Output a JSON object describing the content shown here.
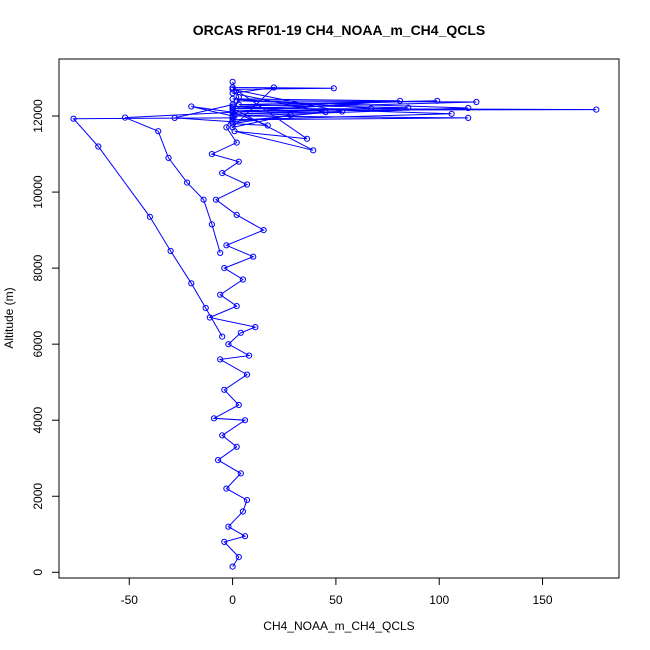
{
  "chart_data": {
    "type": "scatter",
    "title": "ORCAS RF01-19 CH4_NOAA_m_CH4_QCLS",
    "xlabel": "CH4_NOAA_m_CH4_QCLS",
    "ylabel": "Altitude (m)",
    "xlim": [
      -84,
      187
    ],
    "ylim": [
      -150,
      13500
    ],
    "x_ticks": [
      -50,
      0,
      50,
      100,
      150
    ],
    "y_ticks": [
      0,
      2000,
      4000,
      6000,
      8000,
      10000,
      12000
    ],
    "grid": false,
    "legend": "none",
    "series_color": "#0000ff",
    "series": [
      {
        "points": [
          {
            "x": 0,
            "y": 150
          },
          {
            "x": 3,
            "y": 400
          },
          {
            "x": -4,
            "y": 800
          },
          {
            "x": 6,
            "y": 950
          },
          {
            "x": -2,
            "y": 1200
          },
          {
            "x": 5,
            "y": 1600
          },
          {
            "x": 7,
            "y": 1900
          },
          {
            "x": -3,
            "y": 2200
          },
          {
            "x": 4,
            "y": 2600
          },
          {
            "x": -7,
            "y": 2950
          },
          {
            "x": 2,
            "y": 3300
          },
          {
            "x": -5,
            "y": 3600
          },
          {
            "x": 6,
            "y": 4000
          },
          {
            "x": -9,
            "y": 4050
          },
          {
            "x": 3,
            "y": 4400
          },
          {
            "x": -4,
            "y": 4800
          },
          {
            "x": 7,
            "y": 5200
          },
          {
            "x": -6,
            "y": 5600
          },
          {
            "x": 8,
            "y": 5700
          },
          {
            "x": -2,
            "y": 6000
          },
          {
            "x": 4,
            "y": 6300
          },
          {
            "x": 11,
            "y": 6450
          },
          {
            "x": -11,
            "y": 6700
          },
          {
            "x": 2,
            "y": 7000
          },
          {
            "x": -6,
            "y": 7300
          },
          {
            "x": 5,
            "y": 7700
          },
          {
            "x": -4,
            "y": 8000
          },
          {
            "x": 10,
            "y": 8300
          },
          {
            "x": -3,
            "y": 8600
          },
          {
            "x": 15,
            "y": 9000
          },
          {
            "x": 2,
            "y": 9400
          },
          {
            "x": -8,
            "y": 9800
          },
          {
            "x": 7,
            "y": 10200
          },
          {
            "x": -5,
            "y": 10500
          },
          {
            "x": 3,
            "y": 10800
          },
          {
            "x": -10,
            "y": 11000
          },
          {
            "x": 2,
            "y": 11300
          },
          {
            "x": -3,
            "y": 11700
          },
          {
            "x": 0,
            "y": 12000
          },
          {
            "x": 3,
            "y": 12500
          },
          {
            "x": 0,
            "y": 12900
          }
        ]
      },
      {
        "points": [
          {
            "x": 0,
            "y": 11950
          },
          {
            "x": -77,
            "y": 11930
          },
          {
            "x": -65,
            "y": 11200
          },
          {
            "x": -40,
            "y": 9350
          },
          {
            "x": -30,
            "y": 8450
          },
          {
            "x": -20,
            "y": 7600
          },
          {
            "x": -13,
            "y": 6950
          },
          {
            "x": -5,
            "y": 6200
          }
        ]
      },
      {
        "points": [
          {
            "x": 0,
            "y": 12100
          },
          {
            "x": -52,
            "y": 11960
          },
          {
            "x": -36,
            "y": 11600
          },
          {
            "x": -31,
            "y": 10900
          },
          {
            "x": -22,
            "y": 10250
          },
          {
            "x": -14,
            "y": 9800
          },
          {
            "x": -10,
            "y": 9150
          },
          {
            "x": -6,
            "y": 8400
          }
        ]
      },
      {
        "points": [
          {
            "x": 0,
            "y": 12150
          },
          {
            "x": 176,
            "y": 12170
          },
          {
            "x": 0,
            "y": 12200
          },
          {
            "x": 118,
            "y": 12370
          },
          {
            "x": 2,
            "y": 12400
          },
          {
            "x": 114,
            "y": 12210
          },
          {
            "x": 1,
            "y": 12000
          },
          {
            "x": 114,
            "y": 11950
          },
          {
            "x": 0,
            "y": 11900
          },
          {
            "x": 106,
            "y": 12060
          },
          {
            "x": 0,
            "y": 12250
          },
          {
            "x": 99,
            "y": 12400
          },
          {
            "x": 3,
            "y": 12300
          },
          {
            "x": 85,
            "y": 12220
          },
          {
            "x": 0,
            "y": 12100
          },
          {
            "x": 81,
            "y": 12400
          },
          {
            "x": 0,
            "y": 12450
          },
          {
            "x": 67,
            "y": 12200
          },
          {
            "x": 1,
            "y": 12050
          },
          {
            "x": 53,
            "y": 12120
          },
          {
            "x": 0,
            "y": 12700
          },
          {
            "x": 49,
            "y": 12730
          },
          {
            "x": 0,
            "y": 12750
          },
          {
            "x": 36,
            "y": 11400
          },
          {
            "x": 1,
            "y": 11600
          },
          {
            "x": 39,
            "y": 11100
          },
          {
            "x": 0,
            "y": 12200
          }
        ]
      },
      {
        "points": [
          {
            "x": 0,
            "y": 12000
          },
          {
            "x": -20,
            "y": 12250
          },
          {
            "x": 0,
            "y": 12100
          },
          {
            "x": 17,
            "y": 11750
          },
          {
            "x": 0,
            "y": 11800
          },
          {
            "x": 28,
            "y": 12030
          },
          {
            "x": 0,
            "y": 11700
          },
          {
            "x": 20,
            "y": 12750
          },
          {
            "x": 0,
            "y": 12600
          },
          {
            "x": 45,
            "y": 12100
          },
          {
            "x": 0,
            "y": 11850
          },
          {
            "x": -28,
            "y": 11950
          },
          {
            "x": 0,
            "y": 12300
          }
        ]
      }
    ]
  }
}
